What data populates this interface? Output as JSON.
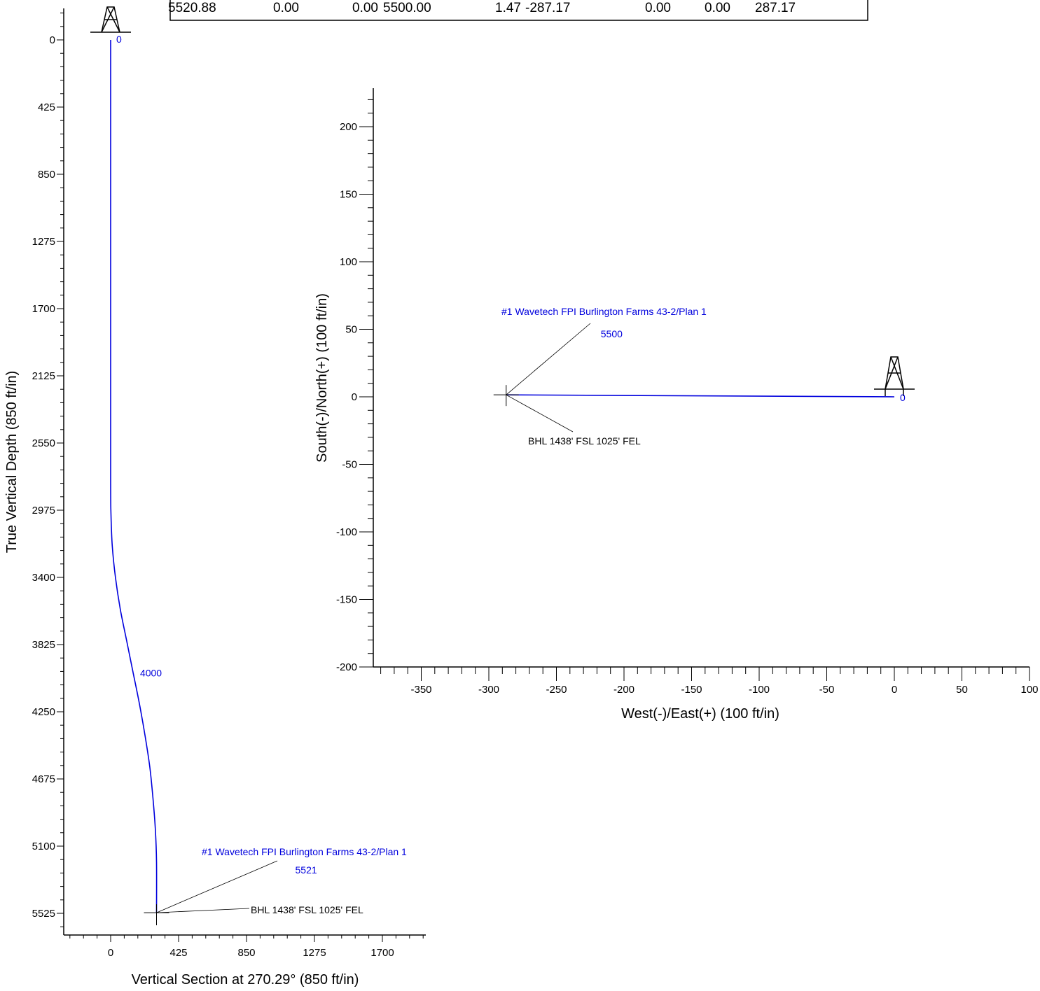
{
  "table_row": [
    "5520.88",
    "0.00",
    "0.00",
    "5500.00",
    "1.47",
    "-287.17",
    "0.00",
    "0.00",
    "287.17"
  ],
  "chart_data": [
    {
      "type": "line",
      "xlabel": "Vertical Section at 270.29° (850 ft/in)",
      "ylabel": "True Vertical Depth (850 ft/in)",
      "xlim": [
        -300,
        1950
      ],
      "ylim": [
        5700,
        -200
      ],
      "x_ticks": [
        0,
        425,
        850,
        1275,
        1700
      ],
      "y_ticks": [
        0,
        425,
        850,
        1275,
        1700,
        2125,
        2550,
        2975,
        3400,
        3825,
        4250,
        4675,
        5100,
        5525
      ],
      "series": [
        {
          "x": [
            0,
            0,
            0,
            2,
            10,
            30,
            60,
            100,
            140,
            180,
            215,
            245,
            265,
            280,
            287,
            287
          ],
          "y": [
            0,
            2000,
            2800,
            3000,
            3200,
            3400,
            3600,
            3800,
            4000,
            4200,
            4400,
            4600,
            4800,
            5000,
            5200,
            5521
          ],
          "color": "#0000dd"
        }
      ],
      "point_labels": [
        {
          "text": "0",
          "x": 0,
          "y": 0
        },
        {
          "text": "4000",
          "x": 140,
          "y": 4000
        },
        {
          "text": "5521",
          "x": 287,
          "y": 5521
        }
      ],
      "annotations": [
        {
          "text": "#1 Wavetech FPI Burlington Farms 43-2/Plan 1",
          "color": "#0000dd"
        },
        {
          "text": "BHL 1438' FSL 1025' FEL",
          "color": "#000000"
        }
      ],
      "target": {
        "x": 287,
        "y": 5521
      }
    },
    {
      "type": "line",
      "xlabel": "West(-)/East(+) (100 ft/in)",
      "ylabel": "South(-)/North(+) (100 ft/in)",
      "xlim": [
        -390,
        100
      ],
      "ylim": [
        -200,
        230
      ],
      "x_ticks": [
        -350,
        -300,
        -250,
        -200,
        -150,
        -100,
        -50,
        0,
        50,
        100
      ],
      "y_ticks": [
        -200,
        -150,
        -100,
        -50,
        0,
        50,
        100,
        150,
        200
      ],
      "series": [
        {
          "x": [
            0,
            -287.17
          ],
          "y": [
            0,
            1.47
          ],
          "color": "#0000dd"
        }
      ],
      "point_labels": [
        {
          "text": "0",
          "x": 0,
          "y": 0
        },
        {
          "text": "5500",
          "x": -287.17,
          "y": 1.47
        }
      ],
      "annotations": [
        {
          "text": "#1 Wavetech FPI Burlington Farms 43-2/Plan 1",
          "color": "#0000dd"
        },
        {
          "text": "BHL 1438' FSL 1025' FEL",
          "color": "#000000"
        }
      ],
      "target": {
        "x": -287.17,
        "y": 1.47
      }
    }
  ]
}
